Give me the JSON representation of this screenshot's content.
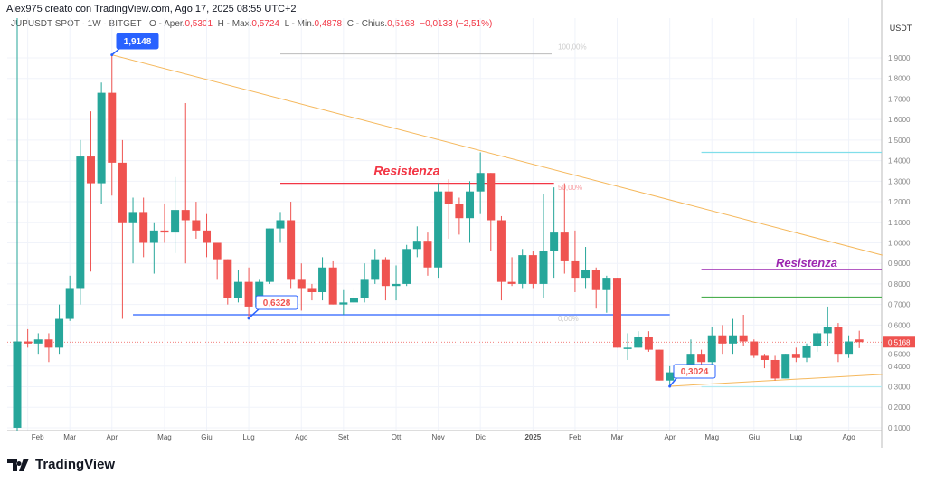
{
  "header": {
    "credit": "Alex975 creato con TradingView.com, Ago 17, 2025 08:55 UTC+2",
    "symbol": "JUPUSDT SPOT · 1W · BITGET",
    "o_label": "O - Aper.",
    "o": "0,5301",
    "h_label": "H - Max.",
    "h": "0,5724",
    "l_label": "L - Min.",
    "l": "0,4878",
    "c_label": "C - Chius.",
    "c": "0,5168",
    "change": "−0,0133 (−2,51%)"
  },
  "footer": {
    "logo": "TradingView"
  },
  "colors": {
    "up": "#26a69a",
    "down": "#ef5350",
    "accent": "#2962ff"
  },
  "chart_data": {
    "type": "candlestick",
    "currency": "USDT",
    "ylim": [
      0.1,
      2.0
    ],
    "grid": true,
    "yticks": [
      "1,9000",
      "1,8000",
      "1,7000",
      "1,6000",
      "1,5000",
      "1,4000",
      "1,3000",
      "1,2000",
      "1,1000",
      "1,0000",
      "0,9000",
      "0,8000",
      "0,7000",
      "0,6000",
      "0,5000",
      "0,4000",
      "0,3000",
      "0,2000",
      "0,1000"
    ],
    "ytick_values": [
      1.9,
      1.8,
      1.7,
      1.6,
      1.5,
      1.4,
      1.3,
      1.2,
      1.1,
      1.0,
      0.9,
      0.8,
      0.7,
      0.6,
      0.5,
      0.4,
      0.3,
      0.2,
      0.1
    ],
    "xticks": [
      {
        "label": "Feb",
        "bar": 1
      },
      {
        "label": "Mar",
        "bar": 5
      },
      {
        "label": "Apr",
        "bar": 9
      },
      {
        "label": "Mag",
        "bar": 14
      },
      {
        "label": "Giu",
        "bar": 18
      },
      {
        "label": "Lug",
        "bar": 22
      },
      {
        "label": "Ago",
        "bar": 27
      },
      {
        "label": "Set",
        "bar": 31
      },
      {
        "label": "Ott",
        "bar": 36
      },
      {
        "label": "Nov",
        "bar": 40
      },
      {
        "label": "Dic",
        "bar": 44
      },
      {
        "label": "2025",
        "bar": 49
      },
      {
        "label": "Feb",
        "bar": 53
      },
      {
        "label": "Mar",
        "bar": 57
      },
      {
        "label": "Apr",
        "bar": 62
      },
      {
        "label": "Mag",
        "bar": 66
      },
      {
        "label": "Giu",
        "bar": 70
      },
      {
        "label": "Lug",
        "bar": 74
      },
      {
        "label": "Ago",
        "bar": 79
      }
    ],
    "ohlc": [
      [
        0.1,
        0.52,
        0.1,
        0.52
      ],
      [
        0.52,
        0.58,
        0.49,
        0.51
      ],
      [
        0.51,
        0.56,
        0.46,
        0.53
      ],
      [
        0.53,
        0.56,
        0.42,
        0.49
      ],
      [
        0.49,
        0.7,
        0.46,
        0.63
      ],
      [
        0.63,
        0.84,
        0.62,
        0.78
      ],
      [
        0.78,
        1.5,
        0.7,
        1.42
      ],
      [
        1.42,
        1.64,
        0.86,
        1.29
      ],
      [
        1.29,
        1.78,
        1.19,
        1.73
      ],
      [
        1.73,
        1.9148,
        1.23,
        1.39
      ],
      [
        1.39,
        1.5,
        0.63,
        1.1
      ],
      [
        1.1,
        1.22,
        0.9,
        1.15
      ],
      [
        1.15,
        1.22,
        0.93,
        1.0
      ],
      [
        1.0,
        1.1,
        0.85,
        1.06
      ],
      [
        1.06,
        1.19,
        1.0,
        1.05
      ],
      [
        1.05,
        1.32,
        0.95,
        1.16
      ],
      [
        1.16,
        1.68,
        0.9,
        1.11
      ],
      [
        1.11,
        1.2,
        1.02,
        1.06
      ],
      [
        1.06,
        1.14,
        0.93,
        1.0
      ],
      [
        1.0,
        1.0,
        0.82,
        0.92
      ],
      [
        0.92,
        0.92,
        0.7,
        0.73
      ],
      [
        0.73,
        0.87,
        0.71,
        0.81
      ],
      [
        0.81,
        0.88,
        0.6328,
        0.69
      ],
      [
        0.69,
        0.82,
        0.68,
        0.81
      ],
      [
        0.81,
        1.07,
        0.8,
        1.07
      ],
      [
        1.07,
        1.15,
        1.0,
        1.11
      ],
      [
        1.11,
        1.2,
        0.78,
        0.82
      ],
      [
        0.82,
        0.9,
        0.67,
        0.78
      ],
      [
        0.78,
        0.8,
        0.72,
        0.76
      ],
      [
        0.76,
        0.93,
        0.72,
        0.88
      ],
      [
        0.88,
        0.91,
        0.7,
        0.7
      ],
      [
        0.7,
        0.77,
        0.65,
        0.71
      ],
      [
        0.71,
        0.78,
        0.7,
        0.73
      ],
      [
        0.73,
        0.9,
        0.71,
        0.82
      ],
      [
        0.82,
        0.97,
        0.8,
        0.92
      ],
      [
        0.92,
        0.93,
        0.72,
        0.79
      ],
      [
        0.79,
        0.89,
        0.72,
        0.8
      ],
      [
        0.8,
        0.99,
        0.79,
        0.97
      ],
      [
        0.97,
        1.08,
        0.93,
        1.01
      ],
      [
        1.01,
        1.05,
        0.84,
        0.88
      ],
      [
        0.88,
        1.29,
        0.83,
        1.25
      ],
      [
        1.25,
        1.31,
        1.02,
        1.19
      ],
      [
        1.19,
        1.22,
        1.04,
        1.12
      ],
      [
        1.12,
        1.3,
        1.0,
        1.25
      ],
      [
        1.25,
        1.44,
        1.14,
        1.34
      ],
      [
        1.34,
        1.34,
        0.96,
        1.11
      ],
      [
        1.11,
        1.13,
        0.72,
        0.81
      ],
      [
        0.81,
        0.93,
        0.79,
        0.8
      ],
      [
        0.8,
        0.97,
        0.78,
        0.94
      ],
      [
        0.94,
        0.96,
        0.78,
        0.8
      ],
      [
        0.8,
        1.24,
        0.73,
        0.96
      ],
      [
        0.96,
        1.27,
        0.83,
        1.05
      ],
      [
        1.05,
        1.29,
        0.85,
        0.91
      ],
      [
        0.91,
        1.06,
        0.76,
        0.83
      ],
      [
        0.83,
        0.98,
        0.78,
        0.87
      ],
      [
        0.87,
        0.88,
        0.68,
        0.77
      ],
      [
        0.77,
        0.84,
        0.66,
        0.83
      ],
      [
        0.83,
        0.83,
        0.49,
        0.49
      ],
      [
        0.49,
        0.56,
        0.43,
        0.49
      ],
      [
        0.49,
        0.57,
        0.49,
        0.54
      ],
      [
        0.54,
        0.57,
        0.47,
        0.48
      ],
      [
        0.48,
        0.48,
        0.33,
        0.33
      ],
      [
        0.33,
        0.4,
        0.3024,
        0.37
      ],
      [
        0.38,
        0.4,
        0.37,
        0.39
      ],
      [
        0.39,
        0.53,
        0.38,
        0.46
      ],
      [
        0.46,
        0.48,
        0.38,
        0.42
      ],
      [
        0.42,
        0.59,
        0.41,
        0.55
      ],
      [
        0.55,
        0.6,
        0.46,
        0.51
      ],
      [
        0.51,
        0.63,
        0.46,
        0.55
      ],
      [
        0.55,
        0.65,
        0.5,
        0.52
      ],
      [
        0.52,
        0.53,
        0.44,
        0.45
      ],
      [
        0.45,
        0.46,
        0.39,
        0.43
      ],
      [
        0.43,
        0.45,
        0.33,
        0.34
      ],
      [
        0.34,
        0.46,
        0.34,
        0.46
      ],
      [
        0.46,
        0.49,
        0.42,
        0.44
      ],
      [
        0.44,
        0.51,
        0.42,
        0.5
      ],
      [
        0.5,
        0.57,
        0.47,
        0.56
      ],
      [
        0.56,
        0.69,
        0.5,
        0.59
      ],
      [
        0.59,
        0.61,
        0.42,
        0.46
      ],
      [
        0.46,
        0.55,
        0.44,
        0.52
      ],
      [
        0.5301,
        0.5724,
        0.4878,
        0.5168
      ]
    ],
    "last_price": {
      "value": 0.5168,
      "label": "0,5168"
    },
    "annotations": {
      "high_label": {
        "text": "1,9148",
        "bar": 9,
        "price": 1.9148
      },
      "low1_label": {
        "text": "0,6328",
        "bar": 22,
        "price": 0.6328
      },
      "low2_label": {
        "text": "0,3024",
        "bar": 62,
        "price": 0.3024
      },
      "resistance1": {
        "text": "Resistenza",
        "price": 1.29,
        "from_bar": 25,
        "to_bar": 51,
        "color": "#f23645"
      },
      "resistance2": {
        "text": "Resistenza",
        "price": 0.87,
        "from_bar": 65,
        "to_bar": 83,
        "color": "#9c27b0"
      },
      "fib": {
        "levels": [
          {
            "label": "100,00%",
            "price": 1.9148
          },
          {
            "label": "50,00%",
            "price": 1.27
          },
          {
            "label": "0,00%",
            "price": 0.6328
          }
        ]
      },
      "support_line": {
        "price": 0.65,
        "from_bar": 11,
        "to_bar": 62,
        "color": "#2962ff"
      },
      "green_line": {
        "price": 0.735,
        "from_bar": 65,
        "to_bar": 83,
        "color": "#4caf50"
      },
      "teal_line": {
        "price": 1.44,
        "from_bar": 65,
        "to_bar": 83,
        "color": "#80deea"
      },
      "cyan_line": {
        "price": 0.3,
        "from_bar": 65,
        "to_bar": 83,
        "color": "#b2ebf2"
      },
      "downtrend": {
        "from": [
          9,
          1.9148
        ],
        "to": [
          82.2,
          0.94
        ]
      },
      "uptrend": {
        "from": [
          62,
          0.3024
        ],
        "to": [
          82.2,
          0.36
        ]
      }
    }
  }
}
